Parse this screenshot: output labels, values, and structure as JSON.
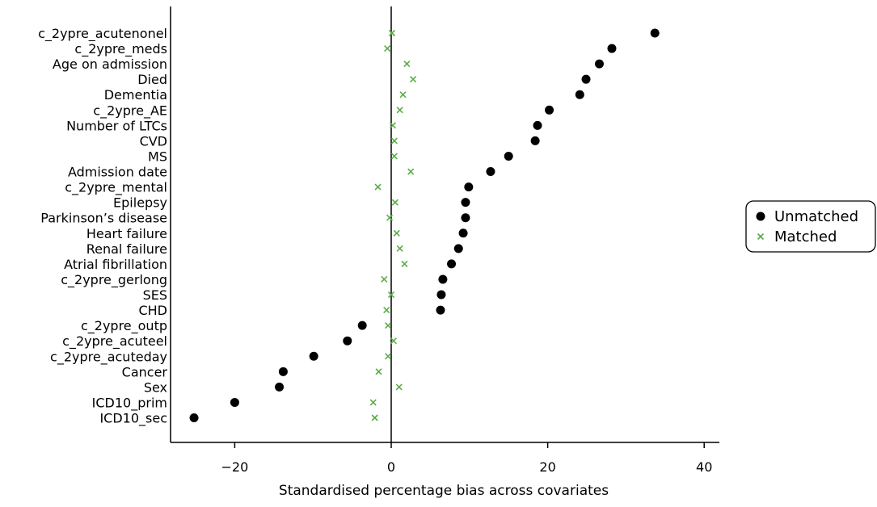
{
  "chart_data": {
    "type": "scatter",
    "xlabel": "Standardised percentage bias across covariates",
    "ylabel": "",
    "xlim": [
      -28,
      42
    ],
    "xticks": [
      -20,
      0,
      20,
      40
    ],
    "xtick_labels": [
      "−20",
      "0",
      "20",
      "40"
    ],
    "reference_line_x": 0,
    "grid": false,
    "legend_position": "right",
    "categories": [
      "c_2ypre_acutenonel",
      "c_2ypre_meds",
      "Age on admission",
      "Died",
      "Dementia",
      "c_2ypre_AE",
      "Number of LTCs",
      "CVD",
      "MS",
      "Admission date",
      "c_2ypre_mental",
      "Epilepsy",
      "Parkinson’s disease",
      "Heart failure",
      "Renal failure",
      "Atrial fibrillation",
      "c_2ypre_gerlong",
      "SES",
      "CHD",
      "c_2ypre_outp",
      "c_2ypre_acuteel",
      "c_2ypre_acuteday",
      "Cancer",
      "Sex",
      "ICD10_prim",
      "ICD10_sec"
    ],
    "series": [
      {
        "name": "Unmatched",
        "marker": "circle",
        "color": "#000000",
        "values": [
          33.7,
          28.2,
          26.6,
          24.9,
          24.1,
          20.2,
          18.7,
          18.4,
          15.0,
          12.7,
          9.9,
          9.5,
          9.5,
          9.2,
          8.6,
          7.7,
          6.6,
          6.4,
          6.3,
          -3.7,
          -5.6,
          -9.9,
          -13.8,
          -14.3,
          -20.0,
          -25.2
        ]
      },
      {
        "name": "Matched",
        "marker": "x",
        "color": "#5aac44",
        "values": [
          0.1,
          -0.5,
          2.0,
          2.8,
          1.5,
          1.1,
          0.2,
          0.4,
          0.4,
          2.5,
          -1.7,
          0.5,
          -0.2,
          0.7,
          1.1,
          1.7,
          -0.9,
          0.0,
          -0.6,
          -0.4,
          0.3,
          -0.4,
          -1.6,
          1.0,
          -2.3,
          -2.1
        ]
      }
    ]
  }
}
